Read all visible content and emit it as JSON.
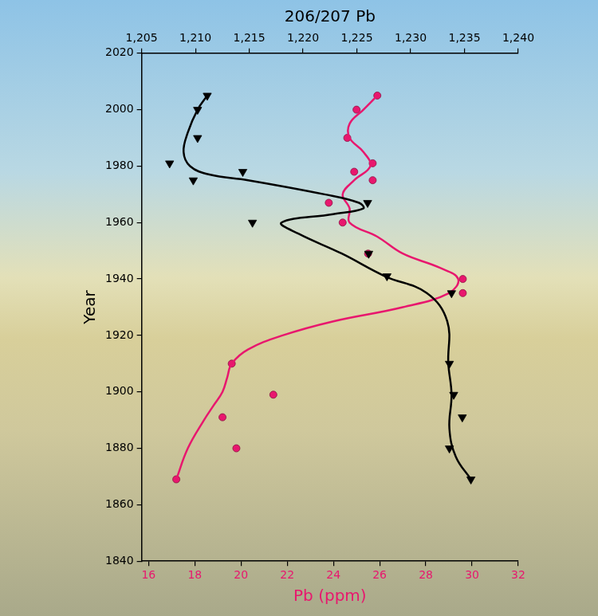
{
  "chart_data": {
    "type": "scatter",
    "x_label": "Pb (ppm)",
    "x2_label": "206/207 Pb",
    "y_label": "Year",
    "xlim": [
      15.7,
      32
    ],
    "xticks": [
      16,
      18,
      20,
      22,
      24,
      26,
      28,
      30,
      32
    ],
    "x2lim": [
      1.205,
      1.24
    ],
    "x2ticks": [
      {
        "value": 1.205,
        "label": "1,205"
      },
      {
        "value": 1.21,
        "label": "1,210"
      },
      {
        "value": 1.215,
        "label": "1,215"
      },
      {
        "value": 1.22,
        "label": "1,220"
      },
      {
        "value": 1.225,
        "label": "1,225"
      },
      {
        "value": 1.23,
        "label": "1,230"
      },
      {
        "value": 1.235,
        "label": "1,235"
      },
      {
        "value": 1.24,
        "label": "1,240"
      }
    ],
    "ylim": [
      1840,
      2020
    ],
    "yticks": [
      1840,
      1860,
      1880,
      1900,
      1920,
      1940,
      1960,
      1980,
      2000,
      2020
    ],
    "grid": false,
    "series": [
      {
        "color": "#000000",
        "axis": "x2",
        "marker": "triangle_down",
        "line_style": "solid",
        "x": [
          1.2111,
          1.2102,
          1.2102,
          1.2076,
          1.2098,
          1.2144,
          1.226,
          1.2153,
          1.2261,
          1.2278,
          1.2338,
          1.2336,
          1.234,
          1.2348,
          1.2336,
          1.2356
        ],
        "y": [
          2005,
          2000,
          1990,
          1981,
          1975,
          1978,
          1967,
          1960,
          1949,
          1941,
          1935,
          1910,
          1899,
          1891,
          1880,
          1869
        ],
        "curve": {
          "x": [
            1.2111,
            1.2102,
            1.2093,
            1.2089,
            1.2095,
            1.2113,
            1.2149,
            1.222,
            1.2252,
            1.2256,
            1.2228,
            1.218,
            1.2196,
            1.2236,
            1.2276,
            1.2315,
            1.2334,
            1.2335,
            1.2338,
            1.2336,
            1.2342,
            1.2356
          ],
          "y": [
            2005,
            2000,
            1992,
            1985,
            1980,
            1977,
            1975,
            1970,
            1967,
            1965,
            1963,
            1960,
            1956,
            1949,
            1941,
            1935,
            1925,
            1910,
            1899,
            1887,
            1877,
            1869
          ]
        }
      },
      {
        "color": "#e8176e",
        "axis": "x",
        "marker": "circle",
        "line_style": "solid",
        "x": [
          25.9,
          25.0,
          24.6,
          25.7,
          24.9,
          25.7,
          23.8,
          24.4,
          25.5,
          29.6,
          29.6,
          19.6,
          21.4,
          19.2,
          19.8,
          17.2
        ],
        "y": [
          2005,
          2000,
          1990,
          1981,
          1978,
          1975,
          1967,
          1960,
          1949,
          1940,
          1935,
          1910,
          1899,
          1891,
          1880,
          1869
        ],
        "curve": {
          "x": [
            25.9,
            25.3,
            24.7,
            24.7,
            25.3,
            25.6,
            24.9,
            24.4,
            24.7,
            24.7,
            25.9,
            27.0,
            28.6,
            29.4,
            29.0,
            27.0,
            24.0,
            21.8,
            20.3,
            19.6,
            19.4,
            19.2,
            18.8,
            18.4,
            17.7,
            17.2
          ],
          "y": [
            2005,
            2000,
            1995,
            1990,
            1985,
            1980,
            1975,
            1970,
            1965,
            1960,
            1955,
            1949,
            1944,
            1940,
            1935,
            1930,
            1925,
            1920,
            1915,
            1910,
            1905,
            1900,
            1895,
            1890,
            1880,
            1869
          ]
        }
      }
    ]
  }
}
